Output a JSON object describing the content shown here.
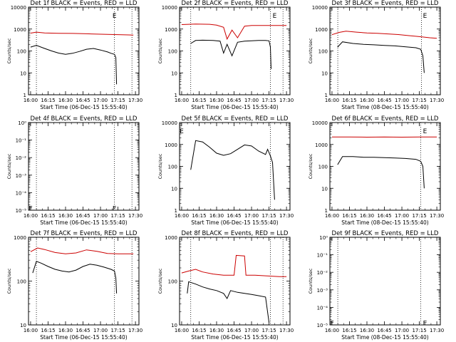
{
  "chart_data": [
    {
      "type": "line",
      "title": "Det 1f BLACK = Events, RED = LLD",
      "ylabel": "Counts/sec",
      "xlabel": "Start Time (06-Dec-15 15:55:40)",
      "ylim": [
        1,
        10000
      ],
      "scale": "log",
      "yticks": [
        "1",
        "10",
        "100",
        "1000",
        "10000"
      ],
      "series": [
        {
          "name": "Events",
          "color": "#000000",
          "x": [
            16.0,
            16.083,
            16.2,
            16.3,
            16.4,
            16.5,
            16.6,
            16.7,
            16.8,
            16.9,
            17.0,
            17.1,
            17.15,
            17.2,
            17.22,
            17.23
          ],
          "values": [
            150,
            180,
            130,
            100,
            80,
            70,
            78,
            95,
            120,
            130,
            110,
            90,
            78,
            70,
            50,
            3
          ]
        },
        {
          "name": "LLD",
          "color": "#cc0000",
          "x": [
            16.0,
            16.083,
            16.2,
            16.4,
            16.6,
            16.8,
            17.0,
            17.2,
            17.4,
            17.47
          ],
          "values": [
            650,
            720,
            660,
            640,
            630,
            610,
            580,
            560,
            540,
            530
          ]
        }
      ],
      "vlines": [
        16.083,
        17.2,
        17.45
      ],
      "marker": {
        "x": 17.2,
        "y": 4000,
        "glyph": "E"
      }
    },
    {
      "type": "line",
      "title": "Det 2f BLACK = Events, RED = LLD",
      "ylabel": "Counts/sec",
      "xlabel": "Start Time (06-Dec-15 15:55:40)",
      "ylim": [
        1,
        10000
      ],
      "scale": "log",
      "yticks": [
        "1",
        "10",
        "100",
        "1000",
        "10000"
      ],
      "series": [
        {
          "name": "Events",
          "color": "#000000",
          "x": [
            16.13,
            16.2,
            16.3,
            16.45,
            16.55,
            16.6,
            16.65,
            16.72,
            16.8,
            16.9,
            17.0,
            17.1,
            17.2,
            17.25,
            17.27,
            17.28
          ],
          "values": [
            220,
            300,
            310,
            300,
            280,
            80,
            200,
            60,
            250,
            280,
            290,
            300,
            300,
            290,
            150,
            15
          ]
        },
        {
          "name": "LLD",
          "color": "#cc0000",
          "x": [
            16.0,
            16.2,
            16.4,
            16.5,
            16.6,
            16.65,
            16.72,
            16.8,
            16.9,
            17.0,
            17.2,
            17.5
          ],
          "values": [
            1600,
            1700,
            1650,
            1500,
            1200,
            350,
            900,
            400,
            1350,
            1450,
            1450,
            1450
          ]
        }
      ],
      "vlines": [
        16.13,
        17.27,
        17.45
      ],
      "marker": {
        "x": 17.33,
        "y": 4000,
        "glyph": "E"
      }
    },
    {
      "type": "line",
      "title": "Det 3f BLACK = Events, RED = LLD",
      "ylabel": "Counts/sec",
      "xlabel": "Start Time (08-Dec-15 15:55:40)",
      "ylim": [
        1,
        10000
      ],
      "scale": "log",
      "yticks": [
        "1",
        "10",
        "100",
        "1000",
        "10000"
      ],
      "series": [
        {
          "name": "Events",
          "color": "#000000",
          "x": [
            16.08,
            16.15,
            16.3,
            16.45,
            16.6,
            16.75,
            16.9,
            17.0,
            17.1,
            17.2,
            17.27,
            17.3,
            17.32
          ],
          "values": [
            150,
            260,
            220,
            200,
            190,
            180,
            170,
            160,
            150,
            140,
            120,
            60,
            10
          ]
        },
        {
          "name": "LLD",
          "color": "#cc0000",
          "x": [
            16.0,
            16.1,
            16.2,
            16.35,
            16.5,
            16.65,
            16.8,
            16.95,
            17.1,
            17.25,
            17.4,
            17.5
          ],
          "values": [
            550,
            700,
            800,
            720,
            660,
            640,
            600,
            560,
            500,
            450,
            400,
            380
          ]
        }
      ],
      "vlines": [
        16.083,
        17.28
      ],
      "marker": {
        "x": 17.33,
        "y": 4000,
        "glyph": "E"
      }
    },
    {
      "type": "line",
      "title": "Det 4f BLACK = Events, RED = LLD",
      "ylabel": "Counts/sec",
      "xlabel": "Start Time (06-Dec-15 15:55:40)",
      "ylim": [
        1,
        10000
      ],
      "scale": "log",
      "yticks": [
        "10⁻⁵",
        "10⁻⁴",
        "10⁻³",
        "10⁻²",
        "10⁻¹",
        "10⁰"
      ],
      "series": [],
      "vlines": [
        16.083,
        17.2,
        17.45
      ],
      "marker": {
        "x": 17.2,
        "y": 1.2,
        "glyph": "E"
      },
      "marker2": {
        "x": 16.0,
        "y": 1.2,
        "glyph": "E"
      }
    },
    {
      "type": "line",
      "title": "Det 5f BLACK = Events, RED = LLD",
      "ylabel": "Counts/sec",
      "xlabel": "Start Time (06-Dec-15 15:55:40)",
      "ylim": [
        1,
        10000
      ],
      "scale": "log",
      "yticks": [
        "1",
        "10",
        "100",
        "1000",
        "10000"
      ],
      "series": [
        {
          "name": "Events",
          "color": "#000000",
          "x": [
            16.13,
            16.2,
            16.3,
            16.4,
            16.5,
            16.6,
            16.7,
            16.8,
            16.9,
            17.0,
            17.1,
            17.2,
            17.23,
            17.27,
            17.3,
            17.33
          ],
          "values": [
            70,
            1500,
            1300,
            750,
            400,
            320,
            380,
            600,
            950,
            850,
            500,
            350,
            600,
            300,
            150,
            3
          ]
        }
      ],
      "vlines": [
        17.27
      ],
      "marker": {
        "x": 16.0,
        "y": 4000,
        "glyph": "E"
      }
    },
    {
      "type": "line",
      "title": "Det 6f BLACK = Events, RED = LLD",
      "ylabel": "Counts/sec",
      "xlabel": "Start Time (08-Dec-15 15:55:40)",
      "ylim": [
        1,
        10000
      ],
      "scale": "log",
      "yticks": [
        "1",
        "10",
        "100",
        "1000",
        "10000"
      ],
      "series": [
        {
          "name": "Events",
          "color": "#000000",
          "x": [
            16.08,
            16.15,
            16.3,
            16.45,
            16.6,
            16.75,
            16.9,
            17.05,
            17.2,
            17.27,
            17.3,
            17.32
          ],
          "values": [
            120,
            280,
            280,
            260,
            260,
            250,
            240,
            230,
            210,
            170,
            100,
            10
          ]
        },
        {
          "name": "LLD",
          "color": "#cc0000",
          "x": [
            16.0,
            16.25,
            16.5,
            16.75,
            17.0,
            17.25,
            17.5
          ],
          "values": [
            2200,
            2200,
            2150,
            2200,
            2150,
            2200,
            2200
          ]
        }
      ],
      "vlines": [
        17.27
      ],
      "marker": {
        "x": 17.33,
        "y": 4000,
        "glyph": "E"
      }
    },
    {
      "type": "line",
      "title": "Det 7f BLACK = Events, RED = LLD",
      "ylabel": "Counts/sec",
      "xlabel": "Start Time (06-Dec-15 15:55:40)",
      "ylim": [
        1,
        1000
      ],
      "scale": "log",
      "yticks": [
        "10",
        "100",
        "1000"
      ],
      "series": [
        {
          "name": "Events",
          "color": "#000000",
          "x": [
            16.03,
            16.083,
            16.15,
            16.25,
            16.35,
            16.45,
            16.55,
            16.65,
            16.75,
            16.85,
            16.95,
            17.05,
            17.15,
            17.2,
            17.22,
            17.23
          ],
          "values": [
            60,
            150,
            130,
            100,
            80,
            70,
            65,
            75,
            100,
            120,
            110,
            95,
            80,
            70,
            40,
            12
          ]
        },
        {
          "name": "LLD",
          "color": "#cc0000",
          "x": [
            16.0,
            16.1,
            16.2,
            16.35,
            16.5,
            16.65,
            16.8,
            16.95,
            17.1,
            17.25,
            17.47
          ],
          "values": [
            320,
            430,
            380,
            300,
            270,
            290,
            370,
            330,
            280,
            270,
            270
          ]
        }
      ],
      "vlines": [
        16.083,
        17.2,
        17.45
      ]
    },
    {
      "type": "line",
      "title": "Det 8f BLACK = Events, RED = LLD",
      "ylabel": "Counts/sec",
      "xlabel": "Start Time (06-Dec-15 15:55:40)",
      "ylim": [
        1,
        1000
      ],
      "scale": "log",
      "yticks": [
        "10",
        "100",
        "1000"
      ],
      "series": [
        {
          "name": "Events",
          "color": "#000000",
          "x": [
            16.08,
            16.1,
            16.2,
            16.3,
            16.4,
            16.5,
            16.6,
            16.65,
            16.7,
            16.8,
            16.9,
            17.0,
            17.1,
            17.2,
            17.25
          ],
          "values": [
            12,
            30,
            25,
            20,
            17,
            15,
            12,
            8,
            15,
            13,
            12,
            11,
            10,
            9,
            1.2
          ]
        },
        {
          "name": "LLD",
          "color": "#cc0000",
          "x": [
            16.0,
            16.1,
            16.2,
            16.3,
            16.45,
            16.6,
            16.75,
            16.78,
            16.9,
            16.92,
            17.05,
            17.2,
            17.4,
            17.5
          ],
          "values": [
            60,
            70,
            80,
            65,
            55,
            50,
            50,
            240,
            230,
            50,
            50,
            48,
            45,
            45
          ]
        }
      ],
      "vlines": [
        16.13,
        17.27,
        17.45
      ]
    },
    {
      "type": "line",
      "title": "Det 9f BLACK = Events, RED = LLD",
      "ylabel": "Counts/sec",
      "xlabel": "Start Time (08-Dec-15 15:55:40)",
      "ylim": [
        1,
        10000
      ],
      "scale": "log",
      "yticks": [
        "10⁻⁵",
        "10⁻⁴",
        "10⁻³",
        "10⁻²",
        "10⁻¹",
        "10⁰"
      ],
      "series": [],
      "vlines": [
        16.083,
        17.27
      ],
      "marker": {
        "x": 17.33,
        "y": 1.2,
        "glyph": "E"
      },
      "marker2": {
        "x": 16.0,
        "y": 1.2,
        "glyph": "E"
      }
    }
  ],
  "xticks": [
    "16:00",
    "16:15",
    "16:30",
    "16:45",
    "17:00",
    "17:15",
    "17:30"
  ]
}
